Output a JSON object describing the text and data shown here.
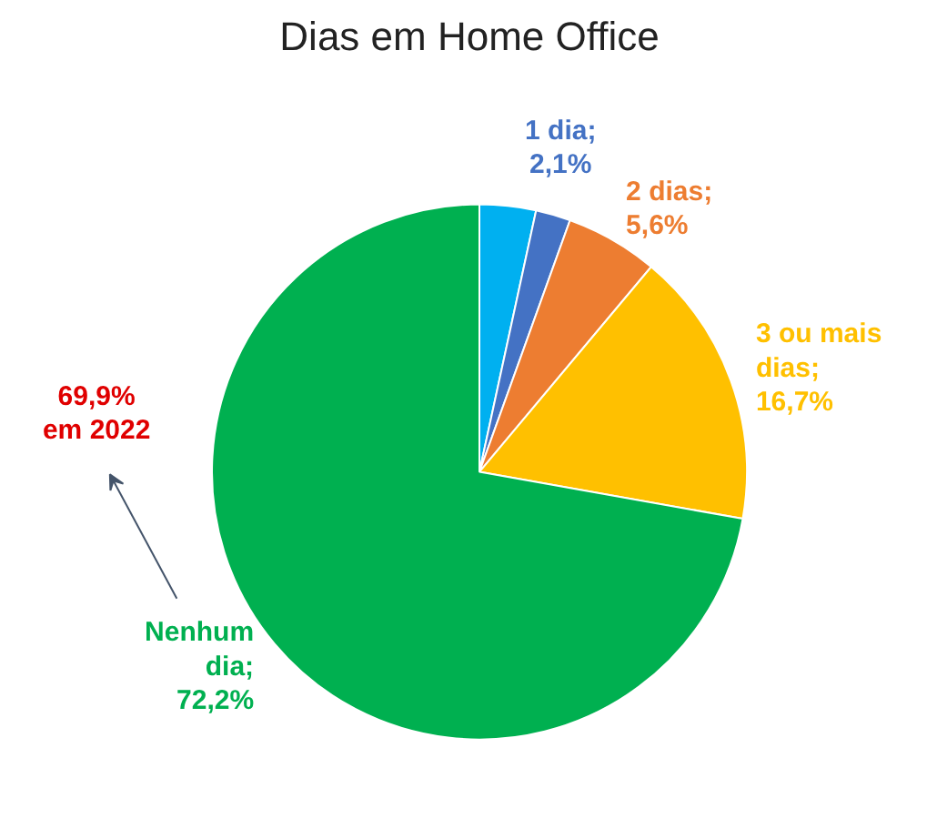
{
  "chart_data": {
    "type": "pie",
    "title": "Dias em Home Office",
    "categories": [
      null,
      "1 dia",
      "2 dias",
      "3 ou mais dias",
      "Nenhum dia"
    ],
    "values": [
      3.4,
      2.1,
      5.6,
      16.7,
      72.2
    ],
    "colors": [
      "#00b0f0",
      "#4472c4",
      "#ed7d31",
      "#ffc000",
      "#00b050"
    ],
    "value_labels": [
      null,
      ";\n2,1%",
      ";\n5,6%",
      ";\n16,7%",
      ";\n72,2%"
    ],
    "annotations": [
      "69,9%\nem 2022"
    ]
  }
}
